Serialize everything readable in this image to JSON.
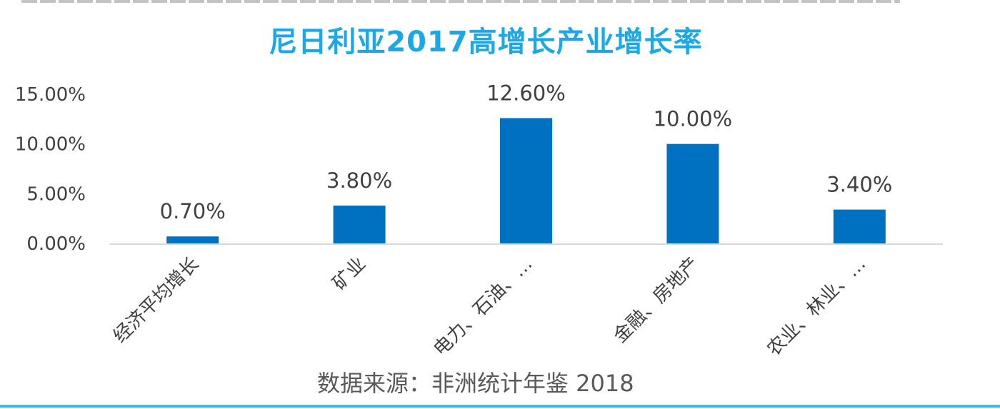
{
  "chart_data": {
    "type": "bar",
    "title": "尼日利亚2017高增长产业增长率",
    "categories": [
      "经济平均增长",
      "矿业",
      "电力、石油、…",
      "金融、房地产",
      "农业、林业、…"
    ],
    "values": [
      0.7,
      3.8,
      12.6,
      10.0,
      3.4
    ],
    "value_labels": [
      "0.70%",
      "3.80%",
      "12.60%",
      "10.00%",
      "3.40%"
    ],
    "ylim": [
      0,
      15
    ],
    "yticks": [
      0,
      5,
      10,
      15
    ],
    "ytick_labels": [
      "0.00%",
      "5.00%",
      "10.00%",
      "15.00%"
    ],
    "xlabel": "",
    "ylabel": "",
    "grid": false,
    "bar_color": "#0070c0"
  },
  "source": "数据来源：非洲统计年鉴 2018",
  "colors": {
    "title": "#1aa8e6",
    "bar": "#0070c0",
    "axis": "#d9d9d9",
    "text": "#404040",
    "bottom_rule": "#45b7e8"
  }
}
